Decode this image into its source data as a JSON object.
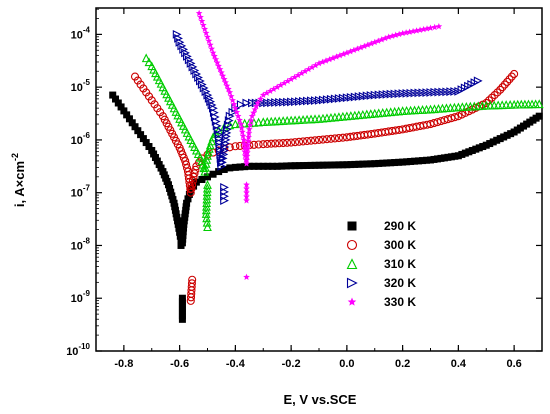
{
  "chart_data": {
    "type": "scatter",
    "title": "",
    "xlabel": "E, V vs.SCE",
    "ylabel": "i, A×cm",
    "ylabel_sup": "-2",
    "xlim": [
      -0.9,
      0.7
    ],
    "ylim_log10": [
      -10,
      -3.5
    ],
    "y_scale": "log",
    "x_ticks": [
      -0.8,
      -0.6,
      -0.4,
      -0.2,
      0.0,
      0.2,
      0.4,
      0.6
    ],
    "x_tick_labels": [
      "-0.8",
      "-0.6",
      "-0.4",
      "-0.2",
      "0.0",
      "0.2",
      "0.4",
      "0.6"
    ],
    "y_ticks": [
      {
        "base": "10",
        "exp": "-10",
        "log10": -10
      },
      {
        "base": "10",
        "exp": "-9",
        "log10": -9
      },
      {
        "base": "10",
        "exp": "-8",
        "log10": -8
      },
      {
        "base": "10",
        "exp": "-7",
        "log10": -7
      },
      {
        "base": "10",
        "exp": "-6",
        "log10": -6
      },
      {
        "base": "10",
        "exp": "-5",
        "log10": -5
      },
      {
        "base": "10",
        "exp": "-4",
        "log10": -4
      }
    ],
    "grid": false,
    "legend_position": "lower-center",
    "series": [
      {
        "name": "290 K",
        "marker": "square",
        "color": "#000000",
        "points": [
          [
            -0.84,
            -5.15
          ],
          [
            -0.82,
            -5.3
          ],
          [
            -0.8,
            -5.45
          ],
          [
            -0.78,
            -5.6
          ],
          [
            -0.76,
            -5.75
          ],
          [
            -0.74,
            -5.9
          ],
          [
            -0.72,
            -6.05
          ],
          [
            -0.7,
            -6.2
          ],
          [
            -0.68,
            -6.4
          ],
          [
            -0.66,
            -6.6
          ],
          [
            -0.64,
            -6.85
          ],
          [
            -0.62,
            -7.2
          ],
          [
            -0.605,
            -7.6
          ],
          [
            -0.595,
            -7.9
          ],
          [
            -0.59,
            -7.95
          ],
          [
            -0.585,
            -7.6
          ],
          [
            -0.575,
            -7.2
          ],
          [
            -0.56,
            -6.95
          ],
          [
            -0.54,
            -6.8
          ],
          [
            -0.52,
            -6.75
          ],
          [
            -0.5,
            -6.7
          ],
          [
            -0.48,
            -6.65
          ],
          [
            -0.46,
            -6.6
          ],
          [
            -0.44,
            -6.56
          ],
          [
            -0.42,
            -6.53
          ],
          [
            -0.4,
            -6.52
          ],
          [
            -0.35,
            -6.5
          ],
          [
            -0.3,
            -6.5
          ],
          [
            -0.25,
            -6.5
          ],
          [
            -0.2,
            -6.49
          ],
          [
            -0.1,
            -6.48
          ],
          [
            0.0,
            -6.47
          ],
          [
            0.1,
            -6.45
          ],
          [
            0.2,
            -6.42
          ],
          [
            0.3,
            -6.38
          ],
          [
            0.4,
            -6.3
          ],
          [
            0.5,
            -6.1
          ],
          [
            0.6,
            -5.85
          ],
          [
            0.69,
            -5.55
          ],
          [
            -0.595,
            -8.0
          ],
          [
            -0.59,
            -9.0
          ],
          [
            -0.59,
            -9.4
          ]
        ]
      },
      {
        "name": "300 K",
        "marker": "circle",
        "color": "#cc0000",
        "points": [
          [
            -0.76,
            -4.8
          ],
          [
            -0.74,
            -4.95
          ],
          [
            -0.72,
            -5.1
          ],
          [
            -0.7,
            -5.25
          ],
          [
            -0.68,
            -5.4
          ],
          [
            -0.66,
            -5.55
          ],
          [
            -0.64,
            -5.75
          ],
          [
            -0.62,
            -5.95
          ],
          [
            -0.6,
            -6.15
          ],
          [
            -0.58,
            -6.4
          ],
          [
            -0.57,
            -6.6
          ],
          [
            -0.565,
            -6.8
          ],
          [
            -0.56,
            -7.0
          ],
          [
            -0.55,
            -6.7
          ],
          [
            -0.54,
            -6.5
          ],
          [
            -0.52,
            -6.35
          ],
          [
            -0.5,
            -6.28
          ],
          [
            -0.48,
            -6.24
          ],
          [
            -0.46,
            -6.2
          ],
          [
            -0.44,
            -6.17
          ],
          [
            -0.42,
            -6.14
          ],
          [
            -0.4,
            -6.12
          ],
          [
            -0.35,
            -6.1
          ],
          [
            -0.3,
            -6.08
          ],
          [
            -0.2,
            -6.05
          ],
          [
            -0.1,
            -6.0
          ],
          [
            0.0,
            -5.95
          ],
          [
            0.1,
            -5.88
          ],
          [
            0.2,
            -5.8
          ],
          [
            0.3,
            -5.7
          ],
          [
            0.4,
            -5.55
          ],
          [
            0.5,
            -5.3
          ],
          [
            0.55,
            -5.05
          ],
          [
            0.6,
            -4.75
          ],
          [
            -0.555,
            -8.65
          ],
          [
            -0.56,
            -9.05
          ]
        ]
      },
      {
        "name": "310 K",
        "marker": "triangle-up",
        "color": "#00cc00",
        "points": [
          [
            -0.72,
            -4.45
          ],
          [
            -0.7,
            -4.6
          ],
          [
            -0.68,
            -4.8
          ],
          [
            -0.66,
            -5.0
          ],
          [
            -0.64,
            -5.2
          ],
          [
            -0.62,
            -5.4
          ],
          [
            -0.6,
            -5.6
          ],
          [
            -0.58,
            -5.8
          ],
          [
            -0.56,
            -6.0
          ],
          [
            -0.54,
            -6.2
          ],
          [
            -0.52,
            -6.4
          ],
          [
            -0.51,
            -6.6
          ],
          [
            -0.5,
            -6.3
          ],
          [
            -0.49,
            -6.1
          ],
          [
            -0.48,
            -5.95
          ],
          [
            -0.46,
            -5.82
          ],
          [
            -0.44,
            -5.76
          ],
          [
            -0.42,
            -5.72
          ],
          [
            -0.4,
            -5.7
          ],
          [
            -0.35,
            -5.68
          ],
          [
            -0.3,
            -5.66
          ],
          [
            -0.2,
            -5.63
          ],
          [
            -0.1,
            -5.6
          ],
          [
            0.0,
            -5.55
          ],
          [
            0.1,
            -5.5
          ],
          [
            0.2,
            -5.45
          ],
          [
            0.3,
            -5.42
          ],
          [
            0.4,
            -5.38
          ],
          [
            0.5,
            -5.35
          ],
          [
            0.6,
            -5.33
          ],
          [
            0.69,
            -5.32
          ],
          [
            -0.5,
            -6.85
          ],
          [
            -0.505,
            -7.4
          ],
          [
            -0.5,
            -7.65
          ]
        ]
      },
      {
        "name": "320 K",
        "marker": "triangle-right",
        "color": "#000099",
        "points": [
          [
            -0.61,
            -4.0
          ],
          [
            -0.6,
            -4.15
          ],
          [
            -0.58,
            -4.35
          ],
          [
            -0.56,
            -4.55
          ],
          [
            -0.54,
            -4.75
          ],
          [
            -0.52,
            -4.95
          ],
          [
            -0.5,
            -5.15
          ],
          [
            -0.48,
            -5.4
          ],
          [
            -0.47,
            -5.65
          ],
          [
            -0.46,
            -5.9
          ],
          [
            -0.455,
            -6.2
          ],
          [
            -0.45,
            -6.5
          ],
          [
            -0.44,
            -6.2
          ],
          [
            -0.43,
            -5.8
          ],
          [
            -0.42,
            -5.55
          ],
          [
            -0.4,
            -5.4
          ],
          [
            -0.38,
            -5.33
          ],
          [
            -0.36,
            -5.3
          ],
          [
            -0.34,
            -5.3
          ],
          [
            -0.3,
            -5.3
          ],
          [
            -0.2,
            -5.28
          ],
          [
            -0.1,
            -5.25
          ],
          [
            0.0,
            -5.2
          ],
          [
            0.1,
            -5.15
          ],
          [
            0.2,
            -5.12
          ],
          [
            0.3,
            -5.1
          ],
          [
            0.4,
            -5.08
          ],
          [
            0.47,
            -4.88
          ],
          [
            -0.44,
            -6.9
          ],
          [
            -0.44,
            -7.15
          ]
        ]
      },
      {
        "name": "330 K",
        "marker": "star",
        "color": "#ff00ff",
        "points": [
          [
            -0.53,
            -3.6
          ],
          [
            -0.52,
            -3.75
          ],
          [
            -0.51,
            -3.9
          ],
          [
            -0.5,
            -4.05
          ],
          [
            -0.49,
            -4.2
          ],
          [
            -0.48,
            -4.35
          ],
          [
            -0.46,
            -4.6
          ],
          [
            -0.44,
            -4.85
          ],
          [
            -0.42,
            -5.1
          ],
          [
            -0.4,
            -5.4
          ],
          [
            -0.38,
            -5.7
          ],
          [
            -0.37,
            -6.0
          ],
          [
            -0.365,
            -6.3
          ],
          [
            -0.36,
            -6.45
          ],
          [
            -0.355,
            -6.1
          ],
          [
            -0.35,
            -5.8
          ],
          [
            -0.34,
            -5.55
          ],
          [
            -0.32,
            -5.3
          ],
          [
            -0.3,
            -5.15
          ],
          [
            -0.25,
            -5.0
          ],
          [
            -0.2,
            -4.85
          ],
          [
            -0.15,
            -4.7
          ],
          [
            -0.1,
            -4.55
          ],
          [
            -0.05,
            -4.45
          ],
          [
            0.0,
            -4.35
          ],
          [
            0.05,
            -4.25
          ],
          [
            0.1,
            -4.15
          ],
          [
            0.15,
            -4.05
          ],
          [
            0.2,
            -3.98
          ],
          [
            0.25,
            -3.93
          ],
          [
            0.3,
            -3.88
          ],
          [
            0.33,
            -3.85
          ],
          [
            -0.36,
            -6.85
          ],
          [
            -0.36,
            -7.15
          ],
          [
            -0.36,
            -8.6
          ]
        ]
      }
    ]
  }
}
